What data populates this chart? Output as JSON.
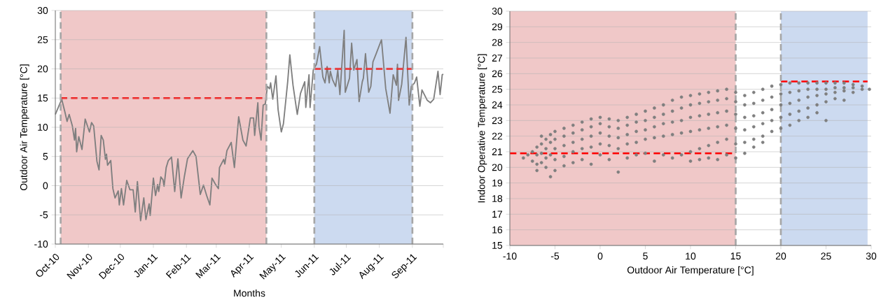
{
  "chart_data": [
    {
      "type": "line",
      "xlabel": "Months",
      "ylabel": "Outdoor Air Temperature [°C]",
      "x": [
        "2010-10-01",
        "2010-10-07",
        "2010-10-10",
        "2010-10-12",
        "2010-10-14",
        "2010-10-17",
        "2010-10-19",
        "2010-10-20",
        "2010-10-21",
        "2010-10-23",
        "2010-10-26",
        "2010-10-29",
        "2010-11-02",
        "2010-11-04",
        "2010-11-06",
        "2010-11-09",
        "2010-11-11",
        "2010-11-13",
        "2010-11-15",
        "2010-11-17",
        "2010-11-18",
        "2010-11-19",
        "2010-11-22",
        "2010-11-24",
        "2010-11-26",
        "2010-11-29",
        "2010-11-30",
        "2010-12-02",
        "2010-12-04",
        "2010-12-07",
        "2010-12-10",
        "2010-12-13",
        "2010-12-15",
        "2010-12-17",
        "2010-12-20",
        "2010-12-23",
        "2010-12-25",
        "2010-12-28",
        "2010-12-29",
        "2011-01-01",
        "2011-01-03",
        "2011-01-05",
        "2011-01-06",
        "2011-01-08",
        "2011-01-10",
        "2011-01-11",
        "2011-01-13",
        "2011-01-15",
        "2011-01-18",
        "2011-01-21",
        "2011-01-24",
        "2011-01-27",
        "2011-01-30",
        "2011-02-02",
        "2011-02-07",
        "2011-02-10",
        "2011-02-14",
        "2011-02-17",
        "2011-02-20",
        "2011-02-23",
        "2011-02-25",
        "2011-02-28",
        "2011-03-03",
        "2011-03-04",
        "2011-03-08",
        "2011-03-09",
        "2011-03-11",
        "2011-03-15",
        "2011-03-18",
        "2011-03-22",
        "2011-03-26",
        "2011-03-29",
        "2011-04-02",
        "2011-04-05",
        "2011-04-06",
        "2011-04-09",
        "2011-04-10",
        "2011-04-12",
        "2011-04-14",
        "2011-04-16",
        "2011-04-18",
        "2011-04-20",
        "2011-04-21",
        "2011-04-23",
        "2011-04-26",
        "2011-04-28",
        "2011-05-01",
        "2011-05-03",
        "2011-05-07",
        "2011-05-09",
        "2011-05-12",
        "2011-05-16",
        "2011-05-19",
        "2011-05-23",
        "2011-05-24",
        "2011-05-27",
        "2011-05-28",
        "2011-05-31",
        "2011-06-03",
        "2011-06-06",
        "2011-06-09",
        "2011-06-11",
        "2011-06-13",
        "2011-06-15",
        "2011-06-16",
        "2011-06-18",
        "2011-06-21",
        "2011-06-23",
        "2011-06-25",
        "2011-06-29",
        "2011-06-30",
        "2011-07-04",
        "2011-07-06",
        "2011-07-08",
        "2011-07-11",
        "2011-07-13",
        "2011-07-16",
        "2011-07-17",
        "2011-07-19",
        "2011-07-22",
        "2011-07-24",
        "2011-07-26",
        "2011-07-29",
        "2011-08-03",
        "2011-08-07",
        "2011-08-11",
        "2011-08-14",
        "2011-08-16",
        "2011-08-17",
        "2011-08-18",
        "2011-08-19",
        "2011-08-22",
        "2011-08-23",
        "2011-08-26",
        "2011-08-29",
        "2011-08-31",
        "2011-09-03",
        "2011-09-05",
        "2011-09-08",
        "2011-09-10",
        "2011-09-15",
        "2011-09-18",
        "2011-09-21",
        "2011-09-25",
        "2011-09-27",
        "2011-09-29",
        "2011-09-30"
      ],
      "series": [
        {
          "color": "#7f7f7f",
          "values": [
            12.2,
            14.8,
            12.6,
            11.0,
            12.2,
            10.2,
            7.8,
            9.8,
            5.8,
            8.4,
            6.2,
            11.4,
            9.2,
            10.8,
            10.2,
            4.2,
            2.7,
            8.6,
            7.8,
            4.5,
            5.4,
            3.5,
            4.3,
            -0.5,
            -2.1,
            -0.9,
            -3.3,
            -0.5,
            -3.3,
            0.9,
            -0.7,
            -0.7,
            -4.5,
            0.7,
            -6.0,
            -2.1,
            -5.8,
            -3.1,
            -5.1,
            1.3,
            -1.7,
            0.2,
            -1.0,
            1.5,
            1.0,
            -0.1,
            3.1,
            4.3,
            4.9,
            -1.0,
            4.6,
            -2.1,
            1.5,
            4.6,
            6.0,
            5.0,
            -1.5,
            0.1,
            -1.7,
            -3.3,
            1.3,
            0.3,
            -0.5,
            3.1,
            4.5,
            3.7,
            6.0,
            7.4,
            3.1,
            11.8,
            7.8,
            6.8,
            11.6,
            11.6,
            8.6,
            14.2,
            10.2,
            7.8,
            13.8,
            14.0,
            17.0,
            16.6,
            17.6,
            14.8,
            18.8,
            13.0,
            9.2,
            10.6,
            17.8,
            22.4,
            17.2,
            12.2,
            15.8,
            17.8,
            13.4,
            19.0,
            13.4,
            19.8,
            20.8,
            23.8,
            18.6,
            17.6,
            20.4,
            17.6,
            19.6,
            18.2,
            17.0,
            19.8,
            15.6,
            26.6,
            16.0,
            18.4,
            24.4,
            19.8,
            21.6,
            14.4,
            17.8,
            18.4,
            22.6,
            16.0,
            17.0,
            21.2,
            22.6,
            25.0,
            16.6,
            12.4,
            19.0,
            17.8,
            17.2,
            20.8,
            14.6,
            17.4,
            19.4,
            25.4,
            13.8,
            17.0,
            17.6,
            18.6,
            13.6,
            16.4,
            14.6,
            14.2,
            14.8,
            19.6,
            15.6,
            19.0,
            19.1
          ]
        }
      ],
      "xlim": [
        "2010-10-01",
        "2011-09-30"
      ],
      "xticks": [
        {
          "value": "2010-10-01",
          "label": "Oct-10"
        },
        {
          "value": "2010-11-01",
          "label": "Nov-10"
        },
        {
          "value": "2010-12-01",
          "label": "Dec-10"
        },
        {
          "value": "2011-01-01",
          "label": "Jan-11"
        },
        {
          "value": "2011-02-01",
          "label": "Feb-11"
        },
        {
          "value": "2011-03-01",
          "label": "Mar-11"
        },
        {
          "value": "2011-04-01",
          "label": "Apr-11"
        },
        {
          "value": "2011-05-01",
          "label": "May-11"
        },
        {
          "value": "2011-06-01",
          "label": "Jun-11"
        },
        {
          "value": "2011-07-01",
          "label": "Jul-11"
        },
        {
          "value": "2011-08-01",
          "label": "Aug-11"
        },
        {
          "value": "2011-09-01",
          "label": "Sep-11"
        },
        {
          "value": "2011-09-30",
          "label": null
        }
      ],
      "ylim": [
        -10,
        30
      ],
      "yticks": [
        -10,
        -5,
        0,
        5,
        10,
        15,
        20,
        25,
        30
      ],
      "grid": "y",
      "bands": [
        {
          "axis": "x",
          "from": "2010-10-06",
          "to": "2011-04-17",
          "color": "#f0c8c8"
        },
        {
          "axis": "x",
          "from": "2011-06-01",
          "to": "2011-09-01",
          "color": "#ccdaf0"
        }
      ],
      "ref_lines": [
        {
          "axis": "y",
          "value": 15,
          "color": "#ff0000",
          "line_style": "dashed"
        },
        {
          "axis": "y",
          "value": 20,
          "color": "#ff0000",
          "line_style": "dashed"
        },
        {
          "axis": "x",
          "value": "2010-10-06",
          "color": "#a6a6a6",
          "line_style": "dashed"
        },
        {
          "axis": "x",
          "value": "2011-04-17",
          "color": "#a6a6a6",
          "line_style": "dashed"
        },
        {
          "axis": "x",
          "value": "2011-06-01",
          "color": "#a6a6a6",
          "line_style": "dashed"
        },
        {
          "axis": "x",
          "value": "2011-09-01",
          "color": "#a6a6a6",
          "line_style": "dashed"
        }
      ]
    },
    {
      "type": "scatter",
      "xlabel": "Outdoor Air Temperature  [°C]",
      "ylabel": "Indoor Operative Temperature [°C]",
      "series": [
        {
          "color": "#7f7f7f",
          "x": [
            -8.5,
            -8,
            -7.5,
            -7.5,
            -7,
            -7,
            -7,
            -7,
            -6.5,
            -6.5,
            -6.5,
            -6.5,
            -6,
            -6,
            -6,
            -6,
            -5.5,
            -5.5,
            -5.5,
            -5.5,
            -5,
            -5,
            -5,
            -5,
            -5,
            -4,
            -4,
            -4,
            -4,
            -4,
            -3,
            -3,
            -3,
            -3,
            -3,
            -2,
            -2,
            -2,
            -2,
            -2,
            -1,
            -1,
            -1,
            -1,
            -1,
            0,
            0,
            0,
            0,
            0,
            1,
            1,
            1,
            1,
            1,
            2,
            2,
            2,
            2,
            2,
            3,
            3,
            3,
            3,
            3,
            4,
            4,
            4,
            4,
            4,
            5,
            5,
            5,
            5,
            5,
            6,
            6,
            6,
            6,
            6,
            7,
            7,
            7,
            7,
            7,
            8,
            8,
            8,
            8,
            8,
            9,
            9,
            9,
            9,
            9,
            10,
            10,
            10,
            10,
            10,
            10,
            11,
            11,
            11,
            11,
            11,
            11,
            12,
            12,
            12,
            12,
            12,
            12,
            13,
            13,
            13,
            13,
            13,
            13,
            14,
            14,
            14,
            14,
            14,
            14,
            15,
            15,
            15,
            15,
            15,
            15,
            16,
            16,
            16,
            16,
            16,
            16,
            17,
            17,
            17,
            17,
            17,
            17,
            18,
            18,
            18,
            18,
            18,
            18,
            19,
            19,
            19,
            19,
            19,
            20,
            20,
            20,
            20,
            20,
            21,
            21,
            21,
            21,
            21,
            22,
            22,
            22,
            22,
            22,
            23,
            23,
            23,
            23,
            23,
            24,
            24,
            24,
            24,
            24,
            25,
            25,
            25,
            25,
            25,
            26,
            26,
            26,
            26,
            27,
            27,
            27,
            27,
            28,
            28,
            28,
            29,
            29,
            29.8
          ],
          "values": [
            20.6,
            20.8,
            21.0,
            20.4,
            21.3,
            20.8,
            20.2,
            19.8,
            22.0,
            21.5,
            20.9,
            20.3,
            21.8,
            21.2,
            20.6,
            20.0,
            22.1,
            21.6,
            20.8,
            19.4,
            22.3,
            21.8,
            21.2,
            20.5,
            19.8,
            22.5,
            22.0,
            21.4,
            20.7,
            20.1,
            22.7,
            22.2,
            21.6,
            21.0,
            20.3,
            22.9,
            22.4,
            21.8,
            21.2,
            20.5,
            23.1,
            22.6,
            22.0,
            21.3,
            20.2,
            23.2,
            22.8,
            22.2,
            21.5,
            20.8,
            23.1,
            22.6,
            22.0,
            21.4,
            20.5,
            23.0,
            22.5,
            21.9,
            21.2,
            19.7,
            23.2,
            22.7,
            22.1,
            21.5,
            20.6,
            23.4,
            22.9,
            22.3,
            21.6,
            20.8,
            23.6,
            23.0,
            22.4,
            21.8,
            20.9,
            23.8,
            23.2,
            22.6,
            21.9,
            20.4,
            24.0,
            23.4,
            22.8,
            22.0,
            20.8,
            24.3,
            23.6,
            22.9,
            22.1,
            20.6,
            24.5,
            23.8,
            23.0,
            22.2,
            20.8,
            24.6,
            24.0,
            23.2,
            22.3,
            21.0,
            20.4,
            24.7,
            24.1,
            23.3,
            22.4,
            21.2,
            20.5,
            24.8,
            24.2,
            23.4,
            22.5,
            21.4,
            20.6,
            24.9,
            24.3,
            23.5,
            22.6,
            21.6,
            20.5,
            25.0,
            24.4,
            23.6,
            22.7,
            21.8,
            20.8,
            24.8,
            24.2,
            23.4,
            22.5,
            21.5,
            20.6,
            24.6,
            24.0,
            23.2,
            22.4,
            21.6,
            20.9,
            24.8,
            24.1,
            23.3,
            22.6,
            21.8,
            21.3,
            25.0,
            24.3,
            23.5,
            22.8,
            22.0,
            21.6,
            25.2,
            24.5,
            23.7,
            23.0,
            22.3,
            25.3,
            24.7,
            24.0,
            23.2,
            22.5,
            25.4,
            24.8,
            24.1,
            23.4,
            22.7,
            25.4,
            24.9,
            24.3,
            23.6,
            23.0,
            25.4,
            25.0,
            24.5,
            23.8,
            23.2,
            25.4,
            25.0,
            24.6,
            24.0,
            23.5,
            25.4,
            25.0,
            24.7,
            24.2,
            23.0,
            25.4,
            25.1,
            24.8,
            24.4,
            25.4,
            25.1,
            24.9,
            24.3,
            25.3,
            25.1,
            24.8,
            25.2,
            25.0,
            25.0
          ]
        }
      ],
      "xlim": [
        -10,
        30
      ],
      "xticks": [
        -10,
        -5,
        0,
        5,
        10,
        15,
        20,
        25,
        30
      ],
      "ylim": [
        15,
        30
      ],
      "yticks": [
        15,
        16,
        17,
        18,
        19,
        20,
        21,
        22,
        23,
        24,
        25,
        26,
        27,
        28,
        29,
        30
      ],
      "grid": "y",
      "bands": [
        {
          "axis": "x",
          "from": -10,
          "to": 15,
          "color": "#f0c8c8"
        },
        {
          "axis": "x",
          "from": 20,
          "to": 29.6,
          "color": "#ccdaf0"
        }
      ],
      "ref_lines": [
        {
          "axis": "y",
          "value": 20.9,
          "color": "#ff0000",
          "line_style": "dashed"
        },
        {
          "axis": "y",
          "value": 25.5,
          "color": "#ff0000",
          "line_style": "dashed"
        },
        {
          "axis": "x",
          "value": 15,
          "color": "#a6a6a6",
          "line_style": "dashed"
        },
        {
          "axis": "x",
          "value": 20,
          "color": "#a6a6a6",
          "line_style": "dashed"
        }
      ]
    }
  ]
}
